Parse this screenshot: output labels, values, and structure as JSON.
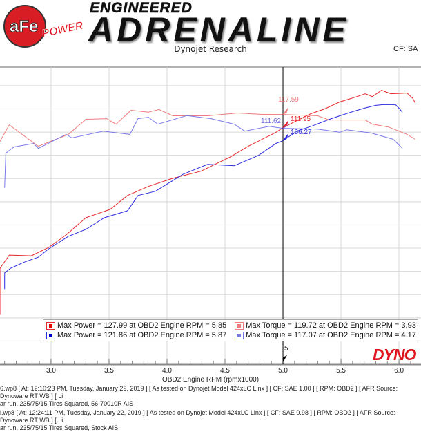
{
  "header": {
    "logo_text": "aFe POWER",
    "title_top": "ENGINEERED",
    "title_main": "ADRENALINE",
    "subtitle": "Dynojet Research",
    "cf_label": "CF: SA"
  },
  "colors": {
    "power1": "#e8262b",
    "torque1": "#ef7b7b",
    "power2": "#2a2ae0",
    "torque2": "#7a7ae8",
    "grid": "#d8d8d8",
    "cursor": "#000000",
    "brand": "#e0161e"
  },
  "chart_data": {
    "type": "line",
    "xlabel": "OBD2 Engine RPM (rpmx1000)",
    "ylabel": "",
    "xlim": [
      2.56,
      6.19
    ],
    "ylim": [
      10,
      138
    ],
    "x_ticks": [
      "3.0",
      "3.5",
      "4.0",
      "4.5",
      "5.0",
      "5.5",
      "6.0"
    ],
    "grid": true,
    "cursor": {
      "x": 5.0,
      "label": "5",
      "values": [
        "117.59",
        "111.62",
        "111.95",
        "106.27"
      ]
    },
    "legend_position": "bottom",
    "series": [
      {
        "name": "Max Power = 127.99 at OBD2 Engine RPM = 5.85",
        "color_key": "power1",
        "x": [
          2.56,
          2.56,
          2.64,
          2.83,
          2.98,
          3.13,
          3.3,
          3.51,
          3.66,
          3.84,
          4.05,
          4.29,
          4.55,
          4.7,
          4.94,
          5.0,
          5.24,
          5.36,
          5.49,
          5.62,
          5.71,
          5.77,
          5.85,
          5.93,
          6.07,
          6.12,
          6.14
        ],
        "y": [
          31.3,
          51.3,
          57.0,
          56.7,
          60.3,
          65.7,
          73.1,
          76.7,
          82.7,
          86.6,
          90.1,
          93.1,
          99.4,
          103.9,
          109.9,
          111.95,
          117.9,
          120.0,
          123.0,
          125.0,
          126.5,
          125.3,
          127.99,
          126.5,
          126.8,
          124.5,
          122.5
        ]
      },
      {
        "name": "Max Torque = 119.72 at OBD2 Engine RPM = 3.93",
        "color_key": "torque1",
        "x": [
          2.56,
          2.64,
          2.89,
          3.15,
          3.3,
          3.48,
          3.56,
          3.69,
          3.84,
          3.93,
          4.05,
          4.35,
          4.61,
          4.82,
          5.0,
          5.3,
          5.4,
          5.71,
          5.77,
          5.91,
          6.07,
          6.14
        ],
        "y": [
          106.0,
          113.1,
          103.9,
          109.0,
          115.5,
          115.8,
          113.4,
          119.4,
          118.6,
          119.72,
          117.0,
          117.0,
          118.2,
          117.6,
          117.59,
          117.0,
          115.2,
          115.2,
          113.4,
          112.2,
          109.0,
          106.9
        ]
      },
      {
        "name": "Max Power = 121.86 at OBD2 Engine RPM = 5.87",
        "color_key": "power2",
        "x": [
          2.6,
          2.6,
          2.65,
          2.77,
          2.89,
          2.98,
          3.15,
          3.3,
          3.46,
          3.66,
          3.75,
          3.9,
          4.14,
          4.35,
          4.58,
          4.79,
          4.94,
          5.0,
          5.12,
          5.26,
          5.4,
          5.49,
          5.6,
          5.7,
          5.8,
          5.87,
          5.97,
          6.0,
          6.03
        ],
        "y": [
          42.4,
          49.3,
          51.3,
          54.0,
          56.1,
          59.7,
          65.1,
          68.1,
          73.1,
          76.1,
          82.7,
          84.5,
          91.9,
          96.1,
          95.5,
          100.0,
          105.1,
          106.27,
          110.4,
          112.8,
          115.5,
          117.0,
          118.8,
          120.3,
          121.5,
          121.86,
          121.8,
          120.3,
          118.5
        ]
      },
      {
        "name": "Max Torque = 117.07 at OBD2 Engine RPM = 4.17",
        "color_key": "torque2",
        "x": [
          2.6,
          2.61,
          2.68,
          2.85,
          2.89,
          3.13,
          3.18,
          3.45,
          3.68,
          3.75,
          3.84,
          3.92,
          4.17,
          4.38,
          4.58,
          4.67,
          4.88,
          5.0,
          5.3,
          5.49,
          5.55,
          5.76,
          5.95,
          6.03
        ],
        "y": [
          86.0,
          100.9,
          103.6,
          105.1,
          103.0,
          109.0,
          107.5,
          110.4,
          109.0,
          115.8,
          116.4,
          113.4,
          117.07,
          115.8,
          113.4,
          110.4,
          112.5,
          111.62,
          111.3,
          109.9,
          111.0,
          109.6,
          106.9,
          103.0
        ]
      }
    ]
  },
  "footer": {
    "run1_line1": "6.wp8 [ At: 12:10:23 PM, Tuesday, January 29, 2019 ] [ As tested on Dynojet Model 424xLC Linx ] [ CF: SAE 1.00 ] [ RPM: OBD2 ] [ AFR Source: Dynoware RT WB ] [ Li",
    "run1_line2": "ar run, 235/75/15 Tires Squared, 56-70010R AIS",
    "run2_line1": "l.wp8 [ At: 12:24:11 PM, Tuesday, January 22, 2019 ] [ As tested on Dynojet Model 424xLC Linx ] [ CF: SAE 0.98 ] [ RPM: OBD2 ] [ AFR Source: Dynoware RT WB ] [ Li",
    "run2_line2": "ar run, 235/75/15 Tires Squared, Stock AIS",
    "brand_logo": "DYNO"
  }
}
